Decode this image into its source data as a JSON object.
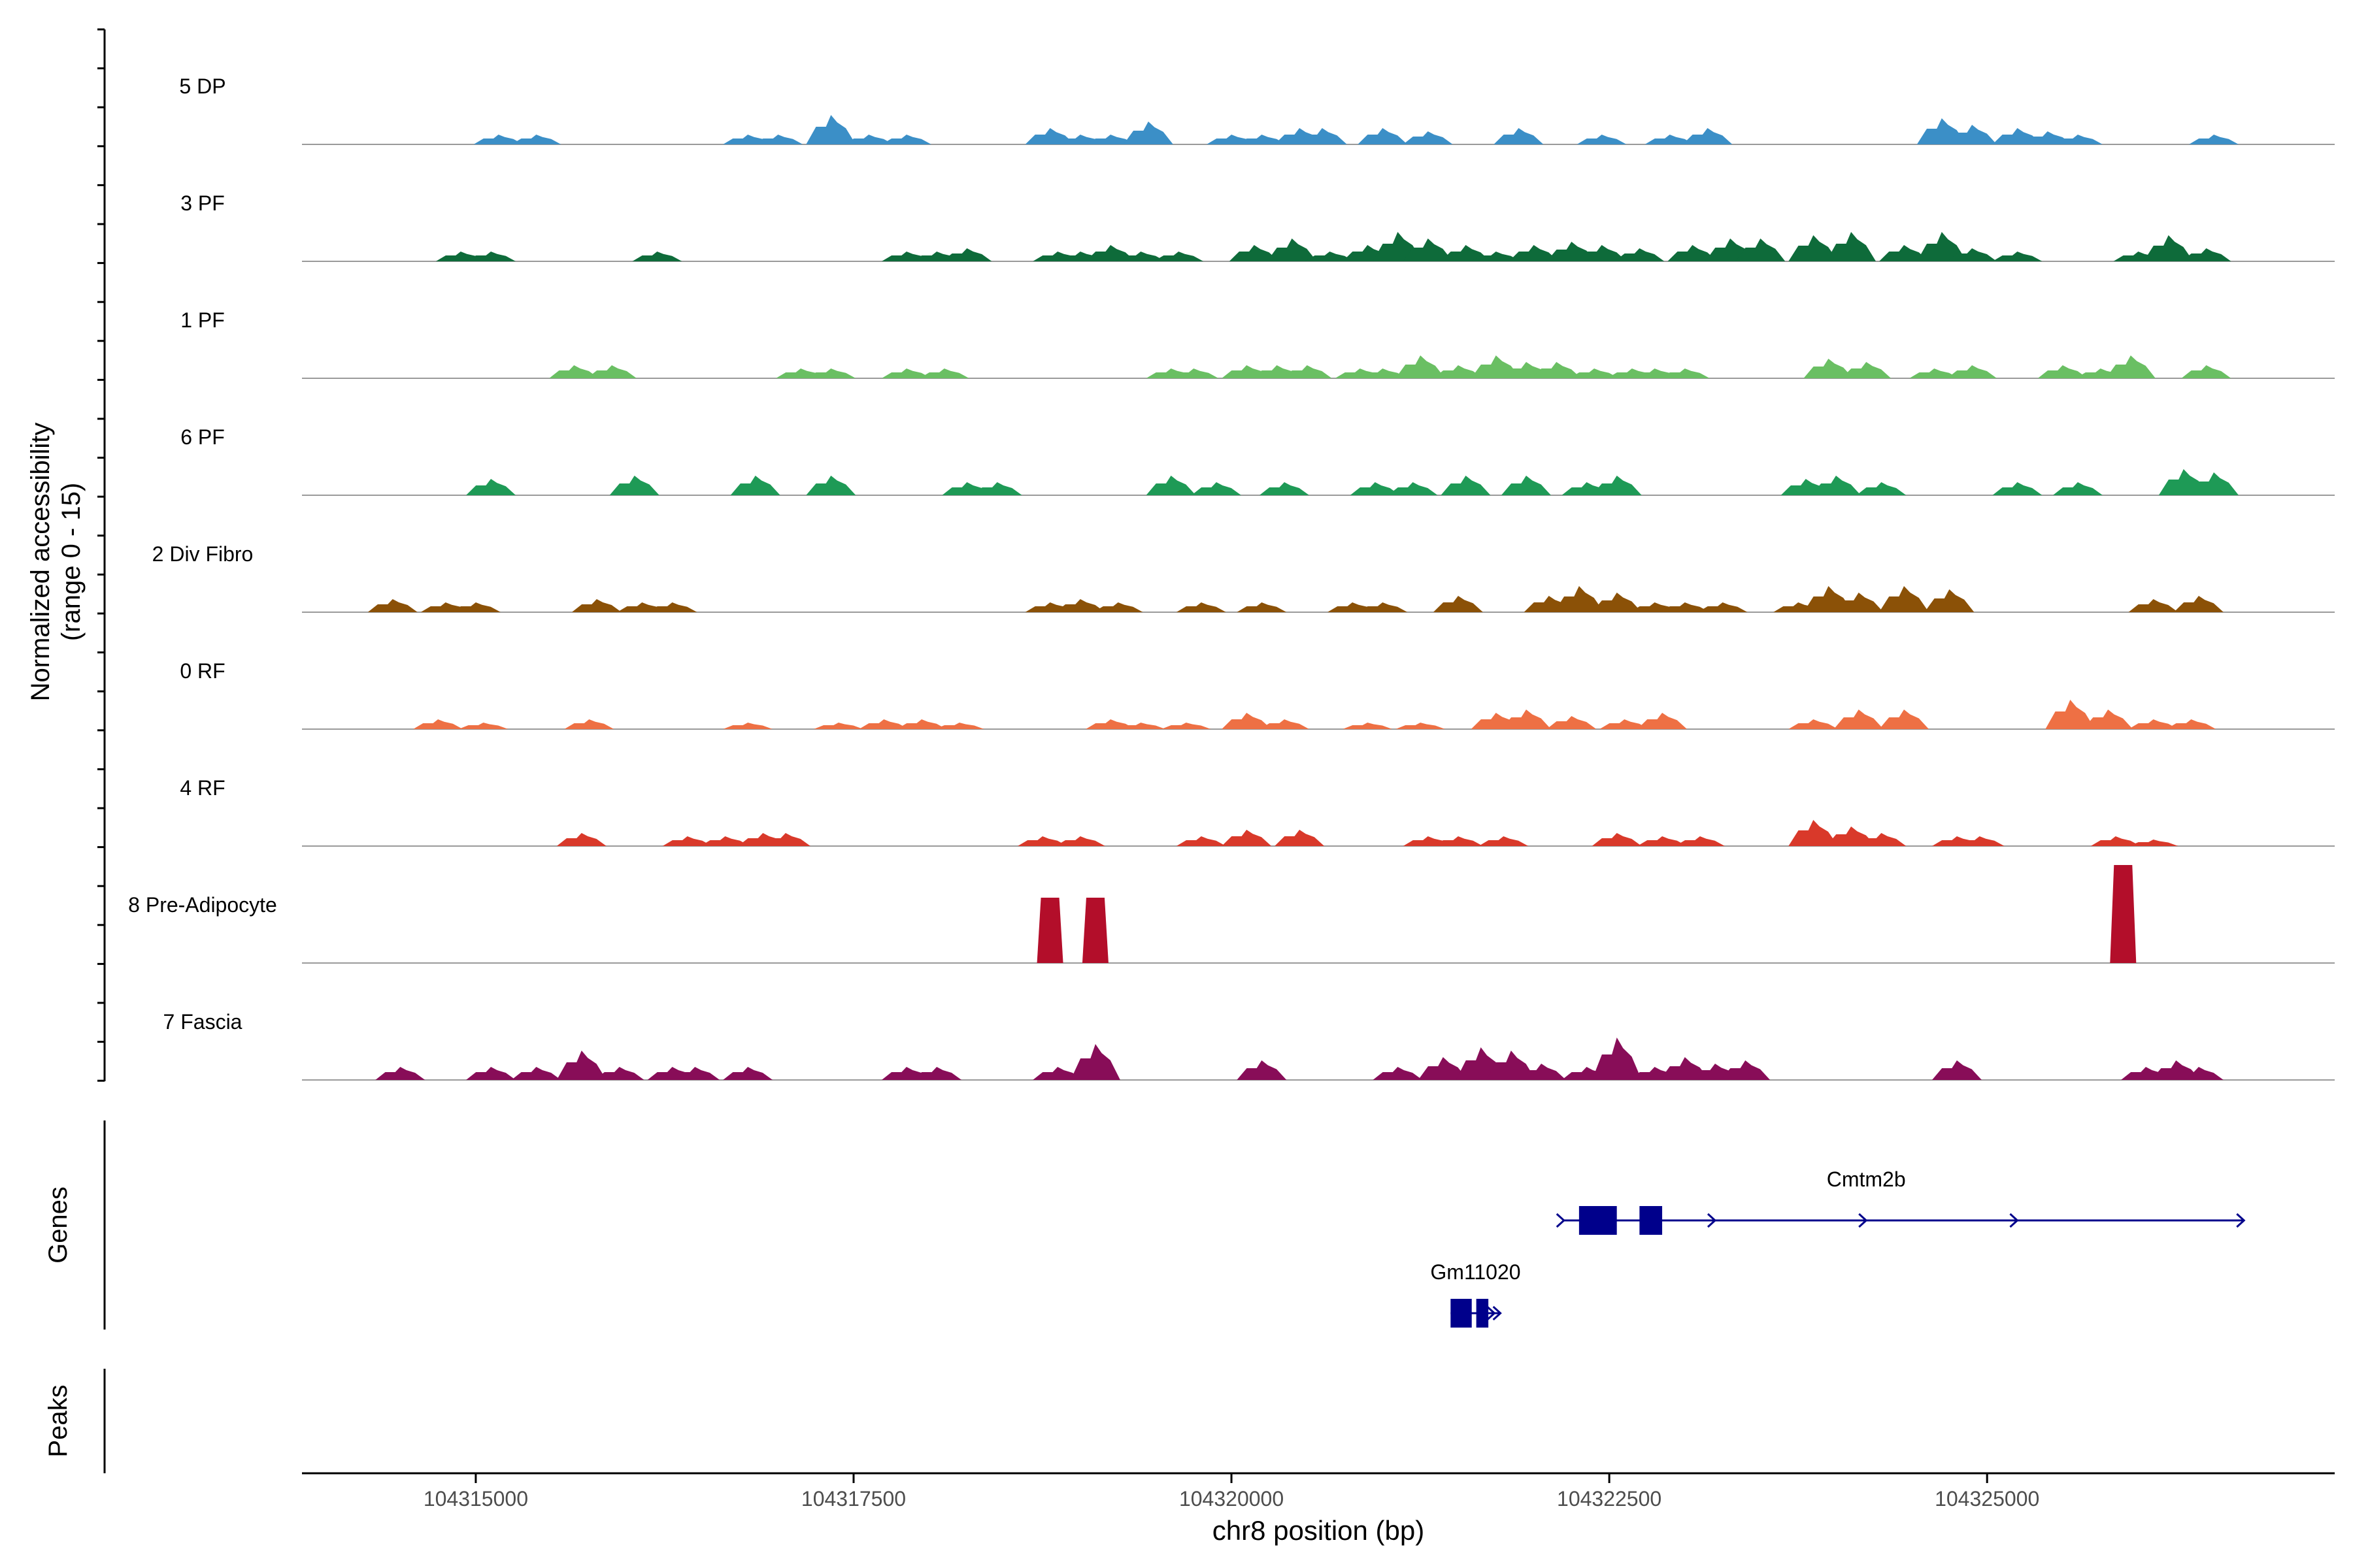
{
  "chart_data": {
    "type": "area",
    "title": "",
    "ylabel_line1": "Normalized accessibility",
    "ylabel_line2": "(range 0 - 15)",
    "xlabel": "chr8 position (bp)",
    "xlim": [
      104313850,
      104327300
    ],
    "ylim": [
      0,
      15
    ],
    "x_ticks": [
      104315000,
      104317500,
      104320000,
      104322500,
      104325000
    ],
    "x_tick_labels": [
      "104315000",
      "104317500",
      "104320000",
      "104322500",
      "104325000"
    ],
    "genes_label": "Genes",
    "peaks_label": "Peaks",
    "series": [
      {
        "name": "5 DP",
        "color": "#3b8fc7",
        "peaks": [
          [
            104315150,
            1.5
          ],
          [
            104315400,
            1.5
          ],
          [
            104316800,
            1.5
          ],
          [
            104317000,
            1.5
          ],
          [
            104317350,
            4.5
          ],
          [
            104317600,
            1.5
          ],
          [
            104317850,
            1.5
          ],
          [
            104318800,
            2.5
          ],
          [
            104319000,
            1.5
          ],
          [
            104319200,
            1.5
          ],
          [
            104319450,
            3.5
          ],
          [
            104320000,
            1.5
          ],
          [
            104320200,
            1.5
          ],
          [
            104320450,
            2.5
          ],
          [
            104320600,
            2.5
          ],
          [
            104321000,
            2.5
          ],
          [
            104321300,
            2
          ],
          [
            104321900,
            2.5
          ],
          [
            104322450,
            1.5
          ],
          [
            104322900,
            1.5
          ],
          [
            104323150,
            2.5
          ],
          [
            104324700,
            4
          ],
          [
            104324900,
            3
          ],
          [
            104325200,
            2.5
          ],
          [
            104325400,
            2
          ],
          [
            104325600,
            1.5
          ],
          [
            104326500,
            1.5
          ]
        ]
      },
      {
        "name": "3 PF",
        "color": "#0e6b3a",
        "peaks": [
          [
            104314900,
            1.5
          ],
          [
            104315100,
            1.5
          ],
          [
            104316200,
            1.5
          ],
          [
            104317850,
            1.5
          ],
          [
            104318050,
            1.5
          ],
          [
            104318250,
            2
          ],
          [
            104318850,
            1.5
          ],
          [
            104319000,
            1.5
          ],
          [
            104319200,
            2.5
          ],
          [
            104319400,
            1.5
          ],
          [
            104319650,
            1.5
          ],
          [
            104320150,
            2.5
          ],
          [
            104320400,
            3.5
          ],
          [
            104320650,
            1.5
          ],
          [
            104320900,
            2.5
          ],
          [
            104321100,
            4.5
          ],
          [
            104321300,
            3.5
          ],
          [
            104321550,
            2.5
          ],
          [
            104321750,
            1.5
          ],
          [
            104322000,
            2.5
          ],
          [
            104322250,
            3
          ],
          [
            104322450,
            2.5
          ],
          [
            104322700,
            2
          ],
          [
            104323050,
            2.5
          ],
          [
            104323300,
            3.5
          ],
          [
            104323500,
            3.5
          ],
          [
            104323850,
            4
          ],
          [
            104324100,
            4.5
          ],
          [
            104324450,
            2.5
          ],
          [
            104324700,
            4.5
          ],
          [
            104324900,
            2
          ],
          [
            104325200,
            1.5
          ],
          [
            104326000,
            1.5
          ],
          [
            104326200,
            4
          ],
          [
            104326450,
            2
          ]
        ]
      },
      {
        "name": "1 PF",
        "color": "#6abf63",
        "peaks": [
          [
            104315650,
            2
          ],
          [
            104315900,
            2
          ],
          [
            104317150,
            1.5
          ],
          [
            104317350,
            1.5
          ],
          [
            104317850,
            1.5
          ],
          [
            104318100,
            1.5
          ],
          [
            104319600,
            1.5
          ],
          [
            104319750,
            1.5
          ],
          [
            104320100,
            2
          ],
          [
            104320300,
            2
          ],
          [
            104320500,
            2
          ],
          [
            104320850,
            1.5
          ],
          [
            104321000,
            1.5
          ],
          [
            104321250,
            3.5
          ],
          [
            104321500,
            2
          ],
          [
            104321750,
            3.5
          ],
          [
            104321950,
            2.5
          ],
          [
            104322150,
            2.5
          ],
          [
            104322400,
            1.5
          ],
          [
            104322650,
            1.5
          ],
          [
            104322800,
            1.5
          ],
          [
            104323000,
            1.5
          ],
          [
            104323950,
            3
          ],
          [
            104324200,
            2.5
          ],
          [
            104324650,
            1.5
          ],
          [
            104324900,
            2
          ],
          [
            104325500,
            2
          ],
          [
            104325750,
            1.5
          ],
          [
            104325950,
            3.5
          ],
          [
            104326450,
            2
          ]
        ]
      },
      {
        "name": "6 PF",
        "color": "#1e9a56",
        "peaks": [
          [
            104315100,
            2.5
          ],
          [
            104316050,
            3
          ],
          [
            104316850,
            3
          ],
          [
            104317350,
            3
          ],
          [
            104318250,
            2
          ],
          [
            104318450,
            2
          ],
          [
            104319600,
            3
          ],
          [
            104319900,
            2
          ],
          [
            104320350,
            2
          ],
          [
            104320950,
            2
          ],
          [
            104321200,
            2
          ],
          [
            104321550,
            3
          ],
          [
            104321950,
            3
          ],
          [
            104322350,
            2
          ],
          [
            104322550,
            3
          ],
          [
            104323800,
            2.5
          ],
          [
            104324000,
            3
          ],
          [
            104324300,
            2
          ],
          [
            104325200,
            2
          ],
          [
            104325600,
            2
          ],
          [
            104326300,
            4
          ],
          [
            104326500,
            3.5
          ]
        ]
      },
      {
        "name": "2 Div Fibro",
        "color": "#8b5107",
        "peaks": [
          [
            104314450,
            2
          ],
          [
            104314800,
            1.5
          ],
          [
            104315000,
            1.5
          ],
          [
            104315800,
            2
          ],
          [
            104316100,
            1.5
          ],
          [
            104316300,
            1.5
          ],
          [
            104318800,
            1.5
          ],
          [
            104319000,
            2
          ],
          [
            104319250,
            1.5
          ],
          [
            104319800,
            1.5
          ],
          [
            104320200,
            1.5
          ],
          [
            104320800,
            1.5
          ],
          [
            104321000,
            1.5
          ],
          [
            104321500,
            2.5
          ],
          [
            104322100,
            2.5
          ],
          [
            104322300,
            4
          ],
          [
            104322550,
            3
          ],
          [
            104322800,
            1.5
          ],
          [
            104323000,
            1.5
          ],
          [
            104323250,
            1.5
          ],
          [
            104323750,
            1.5
          ],
          [
            104323950,
            4
          ],
          [
            104324150,
            3
          ],
          [
            104324450,
            4
          ],
          [
            104324750,
            3.5
          ],
          [
            104326100,
            2
          ],
          [
            104326400,
            2.5
          ]
        ]
      },
      {
        "name": "0 RF",
        "color": "#ee7044",
        "peaks": [
          [
            104314750,
            1.5
          ],
          [
            104315050,
            1
          ],
          [
            104315750,
            1.5
          ],
          [
            104316800,
            1
          ],
          [
            104317400,
            1
          ],
          [
            104317700,
            1.5
          ],
          [
            104317950,
            1.5
          ],
          [
            104318200,
            1
          ],
          [
            104319200,
            1.5
          ],
          [
            104319400,
            1
          ],
          [
            104319700,
            1
          ],
          [
            104320100,
            2.5
          ],
          [
            104320350,
            1.5
          ],
          [
            104320900,
            1
          ],
          [
            104321250,
            1
          ],
          [
            104321750,
            2.5
          ],
          [
            104321950,
            3
          ],
          [
            104322250,
            2
          ],
          [
            104322600,
            1.5
          ],
          [
            104322850,
            2.5
          ],
          [
            104323850,
            1.5
          ],
          [
            104324150,
            3
          ],
          [
            104324450,
            3
          ],
          [
            104325550,
            4.5
          ],
          [
            104325800,
            3
          ],
          [
            104326100,
            1.5
          ],
          [
            104326350,
            1.5
          ]
        ]
      },
      {
        "name": "4 RF",
        "color": "#d9392a",
        "peaks": [
          [
            104315700,
            2
          ],
          [
            104316400,
            1.5
          ],
          [
            104316650,
            1.5
          ],
          [
            104316900,
            2
          ],
          [
            104317050,
            2
          ],
          [
            104318750,
            1.5
          ],
          [
            104319000,
            1.5
          ],
          [
            104319800,
            1.5
          ],
          [
            104320100,
            2.5
          ],
          [
            104320450,
            2.5
          ],
          [
            104321300,
            1.5
          ],
          [
            104321500,
            1.5
          ],
          [
            104321800,
            1.5
          ],
          [
            104322550,
            2
          ],
          [
            104322850,
            1.5
          ],
          [
            104323100,
            1.5
          ],
          [
            104323850,
            4
          ],
          [
            104324100,
            3
          ],
          [
            104324300,
            2
          ],
          [
            104324800,
            1.5
          ],
          [
            104324950,
            1.5
          ],
          [
            104325850,
            1.5
          ],
          [
            104326100,
            1
          ]
        ]
      },
      {
        "name": "8 Pre-Adipocyte",
        "color": "#b30e2a",
        "peaks": [
          [
            104318800,
            10
          ],
          [
            104319100,
            10
          ],
          [
            104325900,
            15
          ]
        ]
      },
      {
        "name": "7 Fascia",
        "color": "#880d58",
        "peaks": [
          [
            104314500,
            2
          ],
          [
            104315100,
            2
          ],
          [
            104315400,
            2
          ],
          [
            104315700,
            4.5
          ],
          [
            104315950,
            2
          ],
          [
            104316300,
            2
          ],
          [
            104316450,
            2
          ],
          [
            104316800,
            2
          ],
          [
            104317850,
            2
          ],
          [
            104318050,
            2
          ],
          [
            104318850,
            2
          ],
          [
            104319100,
            5.5
          ],
          [
            104320200,
            3
          ],
          [
            104321100,
            2
          ],
          [
            104321400,
            3.5
          ],
          [
            104321650,
            5
          ],
          [
            104321850,
            4.5
          ],
          [
            104322050,
            2.5
          ],
          [
            104322350,
            2
          ],
          [
            104322550,
            6.5
          ],
          [
            104322800,
            2
          ],
          [
            104323000,
            3.5
          ],
          [
            104323200,
            2.5
          ],
          [
            104323400,
            3
          ],
          [
            104324800,
            3
          ],
          [
            104326050,
            2
          ],
          [
            104326250,
            3
          ],
          [
            104326400,
            2
          ]
        ]
      }
    ],
    "genes": [
      {
        "name": "Cmtm2b",
        "start": 104322200,
        "end": 104326700,
        "strand": "+",
        "exons": [
          [
            104322300,
            104322550
          ],
          [
            104322700,
            104322850
          ]
        ]
      },
      {
        "name": "Gm11020",
        "start": 104321450,
        "end": 104321780,
        "strand": "+",
        "exons": [
          [
            104321450,
            104321590
          ],
          [
            104321620,
            104321700
          ]
        ]
      }
    ]
  }
}
